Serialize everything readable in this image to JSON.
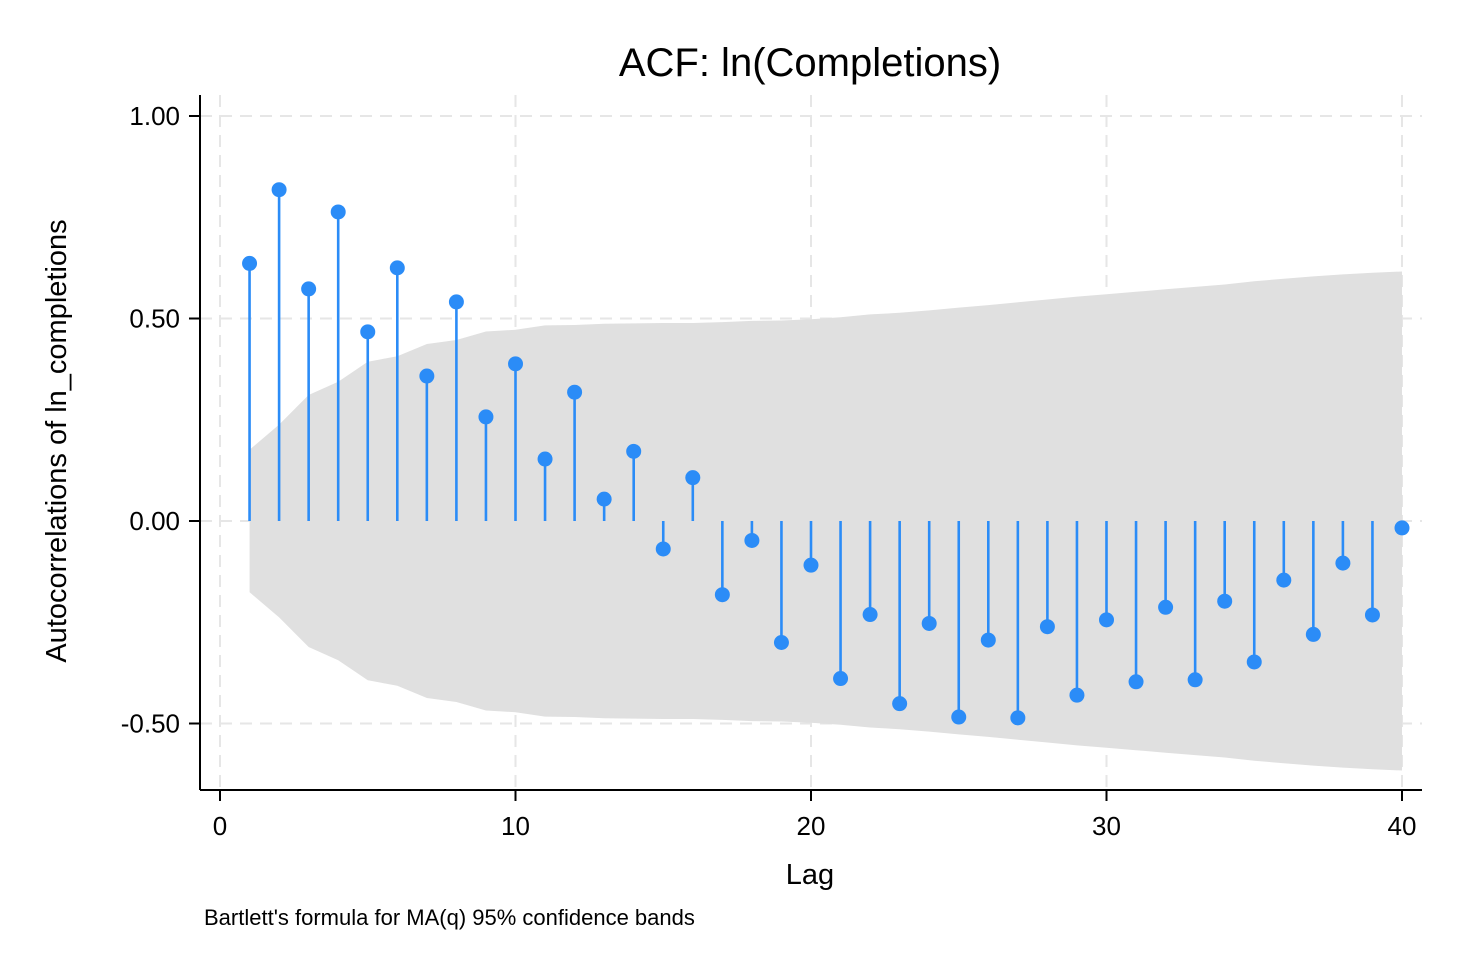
{
  "chart_data": {
    "type": "stem",
    "title": "ACF: ln(Completions)",
    "xlabel": "Lag",
    "ylabel": "Autocorrelations of ln_completions",
    "note": "Bartlett's formula for MA(q) 95% confidence bands",
    "xlim": [
      0,
      40
    ],
    "ylim": [
      -0.67,
      1.05
    ],
    "x_ticks": [
      0,
      10,
      20,
      30,
      40
    ],
    "x_tick_labels": [
      "0",
      "10",
      "20",
      "30",
      "40"
    ],
    "y_ticks": [
      1.0,
      0.5,
      0.0,
      -0.5
    ],
    "y_tick_labels": [
      "1.00",
      "0.50",
      "0.00",
      "-0.50"
    ],
    "grid": true,
    "colors": {
      "stem": "#2b8cf7",
      "band": "#e0e0e0",
      "grid": "#e6e6e6"
    },
    "x": [
      1,
      2,
      3,
      4,
      5,
      6,
      7,
      8,
      9,
      10,
      11,
      12,
      13,
      14,
      15,
      16,
      17,
      18,
      19,
      20,
      21,
      22,
      23,
      24,
      25,
      26,
      27,
      28,
      29,
      30,
      31,
      32,
      33,
      34,
      35,
      36,
      37,
      38,
      39,
      40
    ],
    "values": [
      0.636,
      0.818,
      0.573,
      0.763,
      0.467,
      0.625,
      0.358,
      0.541,
      0.257,
      0.388,
      0.153,
      0.318,
      0.054,
      0.172,
      -0.069,
      0.107,
      -0.182,
      -0.048,
      -0.3,
      -0.109,
      -0.389,
      -0.231,
      -0.451,
      -0.253,
      -0.484,
      -0.294,
      -0.486,
      -0.261,
      -0.43,
      -0.244,
      -0.397,
      -0.213,
      -0.392,
      -0.198,
      -0.348,
      -0.146,
      -0.28,
      -0.104,
      -0.232,
      -0.017
    ],
    "confidence_band": [
      0.176,
      0.238,
      0.311,
      0.344,
      0.393,
      0.407,
      0.437,
      0.447,
      0.468,
      0.472,
      0.483,
      0.484,
      0.487,
      0.488,
      0.489,
      0.489,
      0.491,
      0.494,
      0.495,
      0.498,
      0.503,
      0.51,
      0.514,
      0.52,
      0.527,
      0.533,
      0.54,
      0.547,
      0.554,
      0.56,
      0.566,
      0.572,
      0.578,
      0.584,
      0.592,
      0.598,
      0.604,
      0.609,
      0.613,
      0.616
    ]
  }
}
